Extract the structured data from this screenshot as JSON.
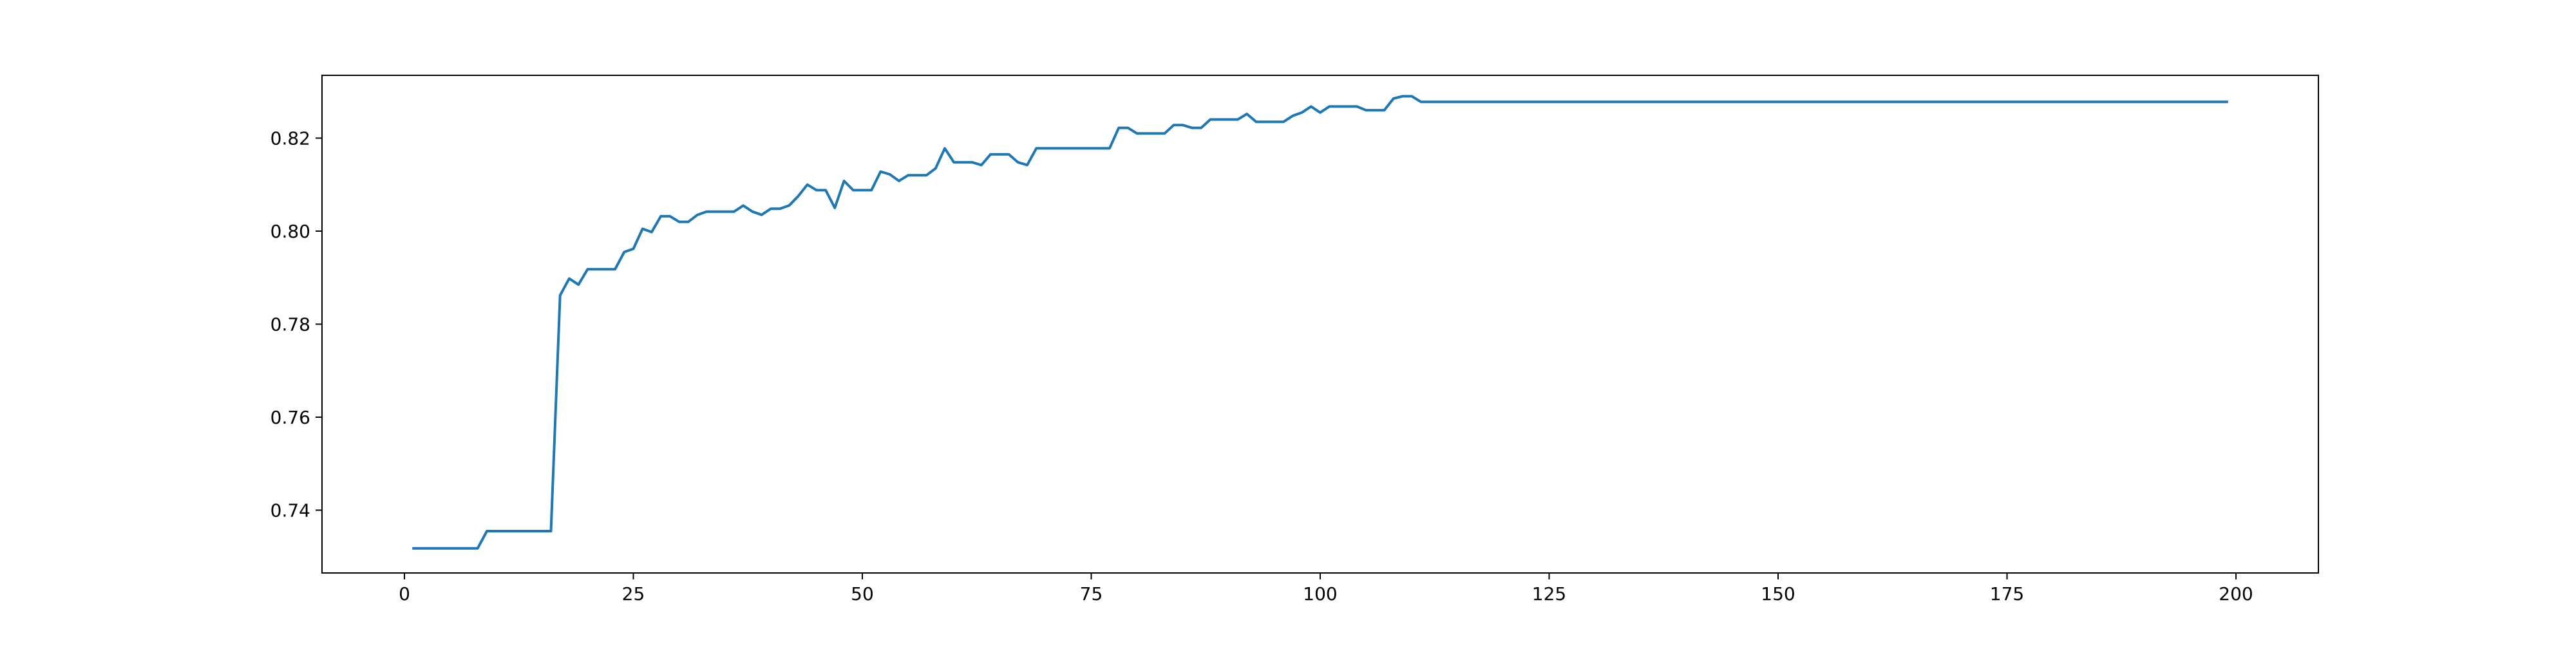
{
  "chart_data": {
    "type": "line",
    "title": "",
    "xlabel": "",
    "ylabel": "",
    "xlim": [
      -9,
      209
    ],
    "ylim": [
      0.7265,
      0.8335
    ],
    "grid": false,
    "x_ticks": [
      0,
      25,
      50,
      75,
      100,
      125,
      150,
      175,
      200
    ],
    "x_tick_labels": [
      "0",
      "25",
      "50",
      "75",
      "100",
      "125",
      "150",
      "175",
      "200"
    ],
    "y_ticks": [
      0.74,
      0.76,
      0.78,
      0.8,
      0.82
    ],
    "y_tick_labels": [
      "0.74",
      "0.76",
      "0.78",
      "0.80",
      "0.82"
    ],
    "series": [
      {
        "color": "#1f77b4",
        "points": [
          [
            1,
            0.7318
          ],
          [
            8,
            0.7318
          ],
          [
            9,
            0.7355
          ],
          [
            16,
            0.7355
          ],
          [
            17,
            0.7862
          ],
          [
            18,
            0.7898
          ],
          [
            19,
            0.7885
          ],
          [
            20,
            0.7918
          ],
          [
            23,
            0.7918
          ],
          [
            24,
            0.7955
          ],
          [
            25,
            0.7962
          ],
          [
            26,
            0.8005
          ],
          [
            27,
            0.7998
          ],
          [
            28,
            0.8032
          ],
          [
            29,
            0.8032
          ],
          [
            30,
            0.802
          ],
          [
            31,
            0.802
          ],
          [
            32,
            0.8035
          ],
          [
            33,
            0.8042
          ],
          [
            36,
            0.8042
          ],
          [
            37,
            0.8055
          ],
          [
            38,
            0.8042
          ],
          [
            39,
            0.8035
          ],
          [
            40,
            0.8048
          ],
          [
            41,
            0.8048
          ],
          [
            42,
            0.8055
          ],
          [
            43,
            0.8075
          ],
          [
            44,
            0.81
          ],
          [
            45,
            0.8088
          ],
          [
            46,
            0.8088
          ],
          [
            47,
            0.805
          ],
          [
            48,
            0.8108
          ],
          [
            49,
            0.8088
          ],
          [
            51,
            0.8088
          ],
          [
            52,
            0.8128
          ],
          [
            53,
            0.8122
          ],
          [
            54,
            0.8108
          ],
          [
            55,
            0.812
          ],
          [
            57,
            0.812
          ],
          [
            58,
            0.8135
          ],
          [
            59,
            0.8178
          ],
          [
            60,
            0.8148
          ],
          [
            62,
            0.8148
          ],
          [
            63,
            0.8142
          ],
          [
            64,
            0.8165
          ],
          [
            66,
            0.8165
          ],
          [
            67,
            0.8148
          ],
          [
            68,
            0.8142
          ],
          [
            69,
            0.8178
          ],
          [
            77,
            0.8178
          ],
          [
            78,
            0.8222
          ],
          [
            79,
            0.8222
          ],
          [
            80,
            0.821
          ],
          [
            83,
            0.821
          ],
          [
            84,
            0.8228
          ],
          [
            85,
            0.8228
          ],
          [
            86,
            0.8222
          ],
          [
            87,
            0.8222
          ],
          [
            88,
            0.824
          ],
          [
            91,
            0.824
          ],
          [
            92,
            0.8252
          ],
          [
            93,
            0.8235
          ],
          [
            96,
            0.8235
          ],
          [
            97,
            0.8248
          ],
          [
            98,
            0.8255
          ],
          [
            99,
            0.8268
          ],
          [
            100,
            0.8255
          ],
          [
            101,
            0.8268
          ],
          [
            104,
            0.8268
          ],
          [
            105,
            0.826
          ],
          [
            107,
            0.826
          ],
          [
            108,
            0.8285
          ],
          [
            109,
            0.829
          ],
          [
            110,
            0.829
          ],
          [
            111,
            0.8278
          ],
          [
            199,
            0.8278
          ]
        ]
      }
    ]
  }
}
